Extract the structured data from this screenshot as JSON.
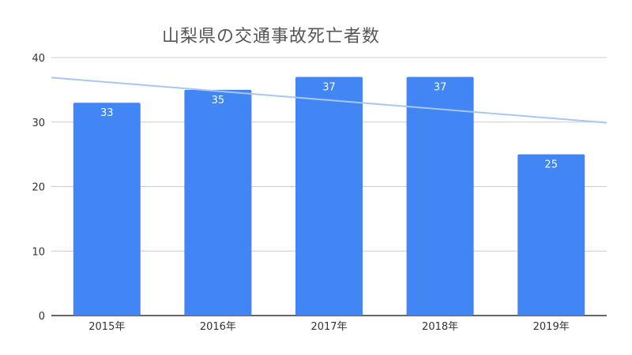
{
  "chart_data": {
    "type": "bar",
    "title": "山梨県の交通事故死亡者数",
    "categories": [
      "2015年",
      "2016年",
      "2017年",
      "2018年",
      "2019年"
    ],
    "values": [
      33,
      35,
      37,
      37,
      25
    ],
    "data_labels": [
      "33",
      "35",
      "37",
      "37",
      "25"
    ],
    "ylim": [
      0,
      40
    ],
    "yticks": [
      "0",
      "10",
      "20",
      "30",
      "40"
    ],
    "grid": true,
    "trendline": true,
    "colors": {
      "bar": "#4285f4",
      "trendline": "#a8c7f0",
      "grid": "#cccccc",
      "axis": "#333333"
    }
  }
}
